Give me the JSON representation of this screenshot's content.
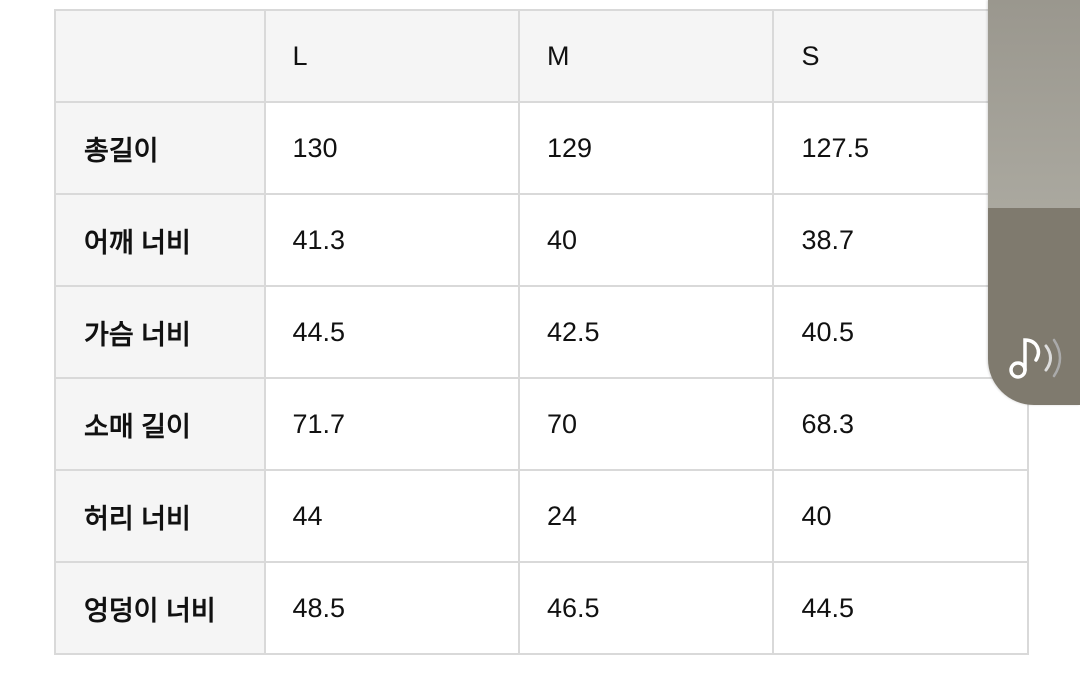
{
  "table": {
    "columns": [
      "",
      "L",
      "M",
      "S"
    ],
    "rows": [
      {
        "label": "총길이",
        "values": [
          "130",
          "129",
          "127.5"
        ]
      },
      {
        "label": "어깨 너비",
        "values": [
          "41.3",
          "40",
          "38.7"
        ]
      },
      {
        "label": "가슴 너비",
        "values": [
          "44.5",
          "42.5",
          "40.5"
        ]
      },
      {
        "label": "소매 길이",
        "values": [
          "71.7",
          "70",
          "68.3"
        ]
      },
      {
        "label": "허리 너비",
        "values": [
          "44",
          "24",
          "40"
        ]
      },
      {
        "label": "엉덩이 너비",
        "values": [
          "48.5",
          "46.5",
          "44.5"
        ]
      }
    ]
  },
  "overlay": {
    "icon": "music-note-sound-icon"
  }
}
